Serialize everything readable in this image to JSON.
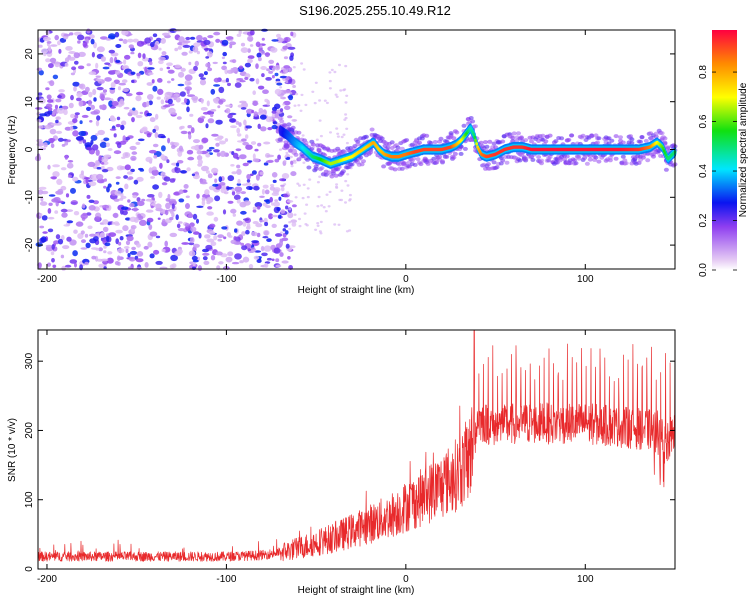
{
  "title": "S196.2025.255.10.49.R12",
  "chart_data": [
    {
      "type": "heatmap",
      "xlabel": "Height of straight line (km)",
      "ylabel": "Frequency (Hz)",
      "xlim": [
        -205,
        150
      ],
      "ylim": [
        -25,
        25
      ],
      "xticks": [
        -200,
        -100,
        0,
        100
      ],
      "yticks": [
        -20,
        -10,
        0,
        10,
        20
      ],
      "colorbar": {
        "label": "Normalized spectral amplitude",
        "ticks": [
          0.0,
          0.2,
          0.4,
          0.6,
          0.8
        ],
        "tick_labels": [
          "0.0",
          "0.2",
          "0.4",
          "0.6",
          "0.8"
        ],
        "range": [
          0,
          0.97
        ]
      },
      "noise_region": {
        "x_range": [
          -205,
          -62
        ],
        "amplitude_range": [
          0.05,
          0.3
        ]
      },
      "ridge": {
        "x": [
          -70,
          -66,
          -62,
          -58,
          -55,
          -52,
          -48,
          -45,
          -42,
          -38,
          -34,
          -30,
          -26,
          -22,
          -18,
          -15,
          -12,
          -8,
          -4,
          0,
          5,
          10,
          15,
          20,
          25,
          28,
          31,
          34,
          36,
          38,
          40,
          42,
          45,
          50,
          55,
          60,
          65,
          70,
          80,
          90,
          100,
          110,
          120,
          130,
          136,
          140,
          143,
          146,
          150
        ],
        "freq": [
          4,
          3,
          1.5,
          0.5,
          -0.5,
          -1.5,
          -2,
          -2.5,
          -3,
          -2.5,
          -2,
          -1.5,
          -0.5,
          0.5,
          1.5,
          0,
          -1,
          -1.5,
          -1.5,
          -1,
          -0.5,
          0,
          0,
          0,
          0.5,
          1,
          2,
          3.5,
          4.5,
          3,
          0.5,
          -1,
          -1.5,
          -1,
          0,
          0.5,
          0.5,
          0,
          0,
          0,
          0,
          0,
          0,
          0,
          0.5,
          1.5,
          0.5,
          -2,
          -0.5
        ],
        "amp": [
          0.25,
          0.3,
          0.35,
          0.4,
          0.45,
          0.5,
          0.55,
          0.6,
          0.65,
          0.65,
          0.7,
          0.7,
          0.75,
          0.75,
          0.8,
          0.75,
          0.8,
          0.85,
          0.85,
          0.85,
          0.9,
          0.9,
          0.9,
          0.9,
          0.9,
          0.8,
          0.7,
          0.55,
          0.45,
          0.5,
          0.75,
          0.85,
          0.9,
          0.92,
          0.92,
          0.92,
          0.92,
          0.95,
          0.95,
          0.95,
          0.95,
          0.95,
          0.95,
          0.92,
          0.85,
          0.7,
          0.6,
          0.5,
          0.5
        ]
      }
    },
    {
      "type": "line",
      "xlabel": "Height of straight line (km)",
      "ylabel": "SNR (10 * v/v)",
      "xlim": [
        -205,
        150
      ],
      "ylim": [
        0,
        345
      ],
      "xticks": [
        -200,
        -100,
        0,
        100
      ],
      "yticks": [
        0,
        100,
        200,
        300
      ],
      "series": [
        {
          "name": "SNR",
          "color": "#e8292b",
          "envelope_x": [
            -205,
            -150,
            -100,
            -80,
            -70,
            -60,
            -50,
            -40,
            -30,
            -20,
            -10,
            0,
            10,
            20,
            30,
            35,
            38,
            40,
            45,
            50,
            60,
            80,
            100,
            120,
            140,
            145,
            150
          ],
          "envelope_mean": [
            18,
            18,
            18,
            20,
            24,
            30,
            38,
            45,
            55,
            65,
            75,
            90,
            105,
            120,
            140,
            160,
            185,
            215,
            210,
            205,
            210,
            210,
            210,
            205,
            200,
            175,
            205
          ],
          "spike_start_x": 38,
          "spike_max": 345,
          "spike_typical": 300
        }
      ]
    }
  ]
}
